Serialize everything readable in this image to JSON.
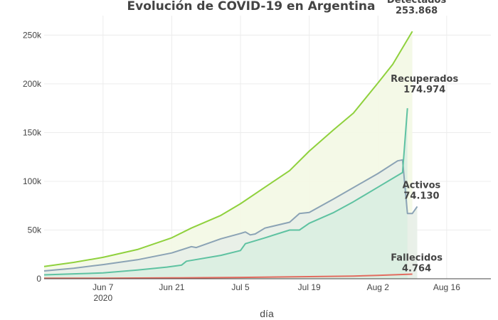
{
  "chart_data": {
    "type": "area",
    "title": "Evolución de COVID-19 en Argentina",
    "xlabel": "día",
    "ylabel": "",
    "x_range": [
      "2020-05-26",
      "2020-08-25"
    ],
    "ylim": [
      0,
      270000
    ],
    "y_ticks": [
      {
        "value": 0,
        "label": "0"
      },
      {
        "value": 50000,
        "label": "50k"
      },
      {
        "value": 100000,
        "label": "100k"
      },
      {
        "value": 150000,
        "label": "150k"
      },
      {
        "value": 200000,
        "label": "200k"
      },
      {
        "value": 250000,
        "label": "250k"
      }
    ],
    "x_ticks": [
      {
        "date": "2020-06-07",
        "label": "Jun 7",
        "sublabel": "2020"
      },
      {
        "date": "2020-06-21",
        "label": "Jun 21",
        "sublabel": ""
      },
      {
        "date": "2020-07-05",
        "label": "Jul 5",
        "sublabel": ""
      },
      {
        "date": "2020-07-19",
        "label": "Jul 19",
        "sublabel": ""
      },
      {
        "date": "2020-08-02",
        "label": "Aug 2",
        "sublabel": ""
      },
      {
        "date": "2020-08-16",
        "label": "Aug 16",
        "sublabel": ""
      }
    ],
    "grid": true,
    "series": [
      {
        "name": "Detectados",
        "value_label": "253.868",
        "color": "#8fd13d",
        "fill": "#f3f9e6",
        "points": [
          [
            "2020-05-26",
            12600
          ],
          [
            "2020-06-01",
            16800
          ],
          [
            "2020-06-07",
            22000
          ],
          [
            "2020-06-14",
            30000
          ],
          [
            "2020-06-21",
            42000
          ],
          [
            "2020-06-25",
            52000
          ],
          [
            "2020-07-01",
            65000
          ],
          [
            "2020-07-05",
            77000
          ],
          [
            "2020-07-10",
            94000
          ],
          [
            "2020-07-15",
            111000
          ],
          [
            "2020-07-19",
            131000
          ],
          [
            "2020-07-24",
            153000
          ],
          [
            "2020-07-28",
            170000
          ],
          [
            "2020-08-02",
            201000
          ],
          [
            "2020-08-05",
            220000
          ],
          [
            "2020-08-09",
            253868
          ]
        ]
      },
      {
        "name": "Activos",
        "value_label": "74.130",
        "color": "#8ba3b5",
        "fill": "#e8efe8",
        "points": [
          [
            "2020-05-26",
            8000
          ],
          [
            "2020-06-01",
            10800
          ],
          [
            "2020-06-07",
            14500
          ],
          [
            "2020-06-14",
            19500
          ],
          [
            "2020-06-21",
            26500
          ],
          [
            "2020-06-25",
            33000
          ],
          [
            "2020-06-26",
            32000
          ],
          [
            "2020-07-01",
            41000
          ],
          [
            "2020-07-05",
            46500
          ],
          [
            "2020-07-06",
            48000
          ],
          [
            "2020-07-07",
            45000
          ],
          [
            "2020-07-08",
            46000
          ],
          [
            "2020-07-10",
            52000
          ],
          [
            "2020-07-15",
            58000
          ],
          [
            "2020-07-17",
            67000
          ],
          [
            "2020-07-19",
            68000
          ],
          [
            "2020-07-24",
            82000
          ],
          [
            "2020-08-02",
            108000
          ],
          [
            "2020-08-06",
            121000
          ],
          [
            "2020-08-07",
            122000
          ],
          [
            "2020-08-08",
            67000
          ],
          [
            "2020-08-09",
            67000
          ],
          [
            "2020-08-10",
            74130
          ]
        ]
      },
      {
        "name": "Recuperados",
        "value_label": "174.974",
        "color": "#5ec2a1",
        "fill": "#dbeee2",
        "points": [
          [
            "2020-05-26",
            4000
          ],
          [
            "2020-06-01",
            5000
          ],
          [
            "2020-06-07",
            6000
          ],
          [
            "2020-06-14",
            9000
          ],
          [
            "2020-06-20",
            12000
          ],
          [
            "2020-06-23",
            14000
          ],
          [
            "2020-06-24",
            18000
          ],
          [
            "2020-07-01",
            24000
          ],
          [
            "2020-07-05",
            29000
          ],
          [
            "2020-07-06",
            36000
          ],
          [
            "2020-07-08",
            39000
          ],
          [
            "2020-07-10",
            42000
          ],
          [
            "2020-07-15",
            50000
          ],
          [
            "2020-07-17",
            50000
          ],
          [
            "2020-07-19",
            57000
          ],
          [
            "2020-07-24",
            68000
          ],
          [
            "2020-07-28",
            79000
          ],
          [
            "2020-08-02",
            94000
          ],
          [
            "2020-08-07",
            109000
          ],
          [
            "2020-08-08",
            174974
          ]
        ]
      },
      {
        "name": "Fallecidos",
        "value_label": "4.764",
        "color": "#e26b5f",
        "fill": "none",
        "points": [
          [
            "2020-05-26",
            500
          ],
          [
            "2020-06-07",
            600
          ],
          [
            "2020-06-21",
            900
          ],
          [
            "2020-07-05",
            1400
          ],
          [
            "2020-07-19",
            2200
          ],
          [
            "2020-07-28",
            2800
          ],
          [
            "2020-08-02",
            3500
          ],
          [
            "2020-08-09",
            4764
          ]
        ]
      }
    ]
  }
}
